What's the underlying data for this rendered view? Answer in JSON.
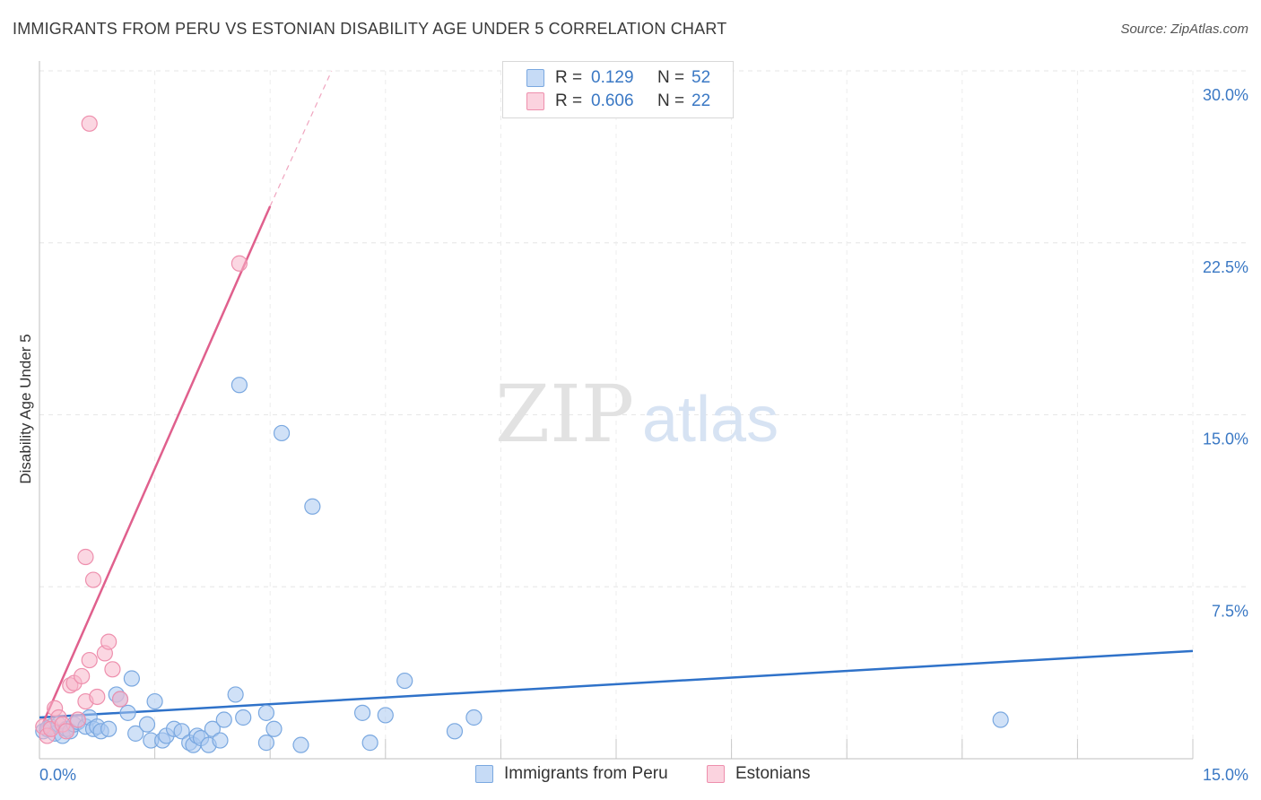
{
  "header": {
    "title": "IMMIGRANTS FROM PERU VS ESTONIAN DISABILITY AGE UNDER 5 CORRELATION CHART",
    "source": "Source: ZipAtlas.com"
  },
  "watermark": {
    "part1": "ZIP",
    "part2": "atlas"
  },
  "legend_top": {
    "rows": [
      {
        "r_label": "R =",
        "r_value": "0.129",
        "n_label": "N =",
        "n_value": "52",
        "color": "#a9c8f0"
      },
      {
        "r_label": "R =",
        "r_value": "0.606",
        "n_label": "N =",
        "n_value": "22",
        "color": "#f7b7ca"
      }
    ]
  },
  "legend_bottom": {
    "items": [
      {
        "label": "Immigrants from Peru",
        "color": "#a9c8f0"
      },
      {
        "label": "Estonians",
        "color": "#f7b7ca"
      }
    ]
  },
  "chart_data": {
    "type": "scatter",
    "title": "IMMIGRANTS FROM PERU VS ESTONIAN DISABILITY AGE UNDER 5 CORRELATION CHART",
    "xlabel": "",
    "ylabel": "Disability Age Under 5",
    "xlim": [
      0,
      15
    ],
    "ylim": [
      0,
      30
    ],
    "x_tick_labels": [
      {
        "value": 0,
        "label": "0.0%"
      },
      {
        "value": 15,
        "label": "15.0%"
      }
    ],
    "y_tick_labels": [
      {
        "value": 7.5,
        "label": "7.5%"
      },
      {
        "value": 15,
        "label": "15.0%"
      },
      {
        "value": 22.5,
        "label": "22.5%"
      },
      {
        "value": 30,
        "label": "30.0%"
      }
    ],
    "grid": true,
    "legend": "top-center",
    "series": [
      {
        "name": "Immigrants from Peru",
        "color": "#a9c8f0",
        "edge": "#7aa8e0",
        "line_color": "#2f72c9",
        "trend": {
          "x": [
            0,
            15
          ],
          "y": [
            1.8,
            4.7
          ]
        },
        "points": [
          [
            0.05,
            1.2
          ],
          [
            0.1,
            1.3
          ],
          [
            0.15,
            1.4
          ],
          [
            0.2,
            1.1
          ],
          [
            0.25,
            1.5
          ],
          [
            0.3,
            1.0
          ],
          [
            0.35,
            1.3
          ],
          [
            0.4,
            1.2
          ],
          [
            0.45,
            1.5
          ],
          [
            0.5,
            1.6
          ],
          [
            0.6,
            1.4
          ],
          [
            0.65,
            1.8
          ],
          [
            0.7,
            1.3
          ],
          [
            0.75,
            1.4
          ],
          [
            0.8,
            1.2
          ],
          [
            0.9,
            1.3
          ],
          [
            1.0,
            2.8
          ],
          [
            1.05,
            2.6
          ],
          [
            1.15,
            2.0
          ],
          [
            1.2,
            3.5
          ],
          [
            1.25,
            1.1
          ],
          [
            1.4,
            1.5
          ],
          [
            1.45,
            0.8
          ],
          [
            1.5,
            2.5
          ],
          [
            1.6,
            0.8
          ],
          [
            1.65,
            1.0
          ],
          [
            1.75,
            1.3
          ],
          [
            1.85,
            1.2
          ],
          [
            1.95,
            0.7
          ],
          [
            2.0,
            0.6
          ],
          [
            2.05,
            1.0
          ],
          [
            2.1,
            0.9
          ],
          [
            2.2,
            0.6
          ],
          [
            2.25,
            1.3
          ],
          [
            2.35,
            0.8
          ],
          [
            2.4,
            1.7
          ],
          [
            2.55,
            2.8
          ],
          [
            2.65,
            1.8
          ],
          [
            2.6,
            16.3
          ],
          [
            2.95,
            2.0
          ],
          [
            2.95,
            0.7
          ],
          [
            3.05,
            1.3
          ],
          [
            3.15,
            14.2
          ],
          [
            3.4,
            0.6
          ],
          [
            3.55,
            11.0
          ],
          [
            4.2,
            2.0
          ],
          [
            4.3,
            0.7
          ],
          [
            4.5,
            1.9
          ],
          [
            4.75,
            3.4
          ],
          [
            5.4,
            1.2
          ],
          [
            5.65,
            1.8
          ],
          [
            12.5,
            1.7
          ]
        ]
      },
      {
        "name": "Estonians",
        "color": "#f7b7ca",
        "edge": "#ee8fad",
        "line_color": "#e0608d",
        "trend": {
          "x": [
            0,
            3.0
          ],
          "y": [
            1.2,
            24.1
          ]
        },
        "trend_extension": {
          "x": [
            3.0,
            3.8
          ],
          "y": [
            24.1,
            30.0
          ]
        },
        "points": [
          [
            0.05,
            1.4
          ],
          [
            0.1,
            1.0
          ],
          [
            0.15,
            1.3
          ],
          [
            0.2,
            2.2
          ],
          [
            0.25,
            1.8
          ],
          [
            0.3,
            1.5
          ],
          [
            0.35,
            1.2
          ],
          [
            0.4,
            3.2
          ],
          [
            0.45,
            3.3
          ],
          [
            0.5,
            1.7
          ],
          [
            0.55,
            3.6
          ],
          [
            0.6,
            2.5
          ],
          [
            0.6,
            8.8
          ],
          [
            0.65,
            4.3
          ],
          [
            0.65,
            27.7
          ],
          [
            0.7,
            7.8
          ],
          [
            0.75,
            2.7
          ],
          [
            0.85,
            4.6
          ],
          [
            0.9,
            5.1
          ],
          [
            0.95,
            3.9
          ],
          [
            1.05,
            2.6
          ],
          [
            2.6,
            21.6
          ]
        ]
      }
    ]
  }
}
